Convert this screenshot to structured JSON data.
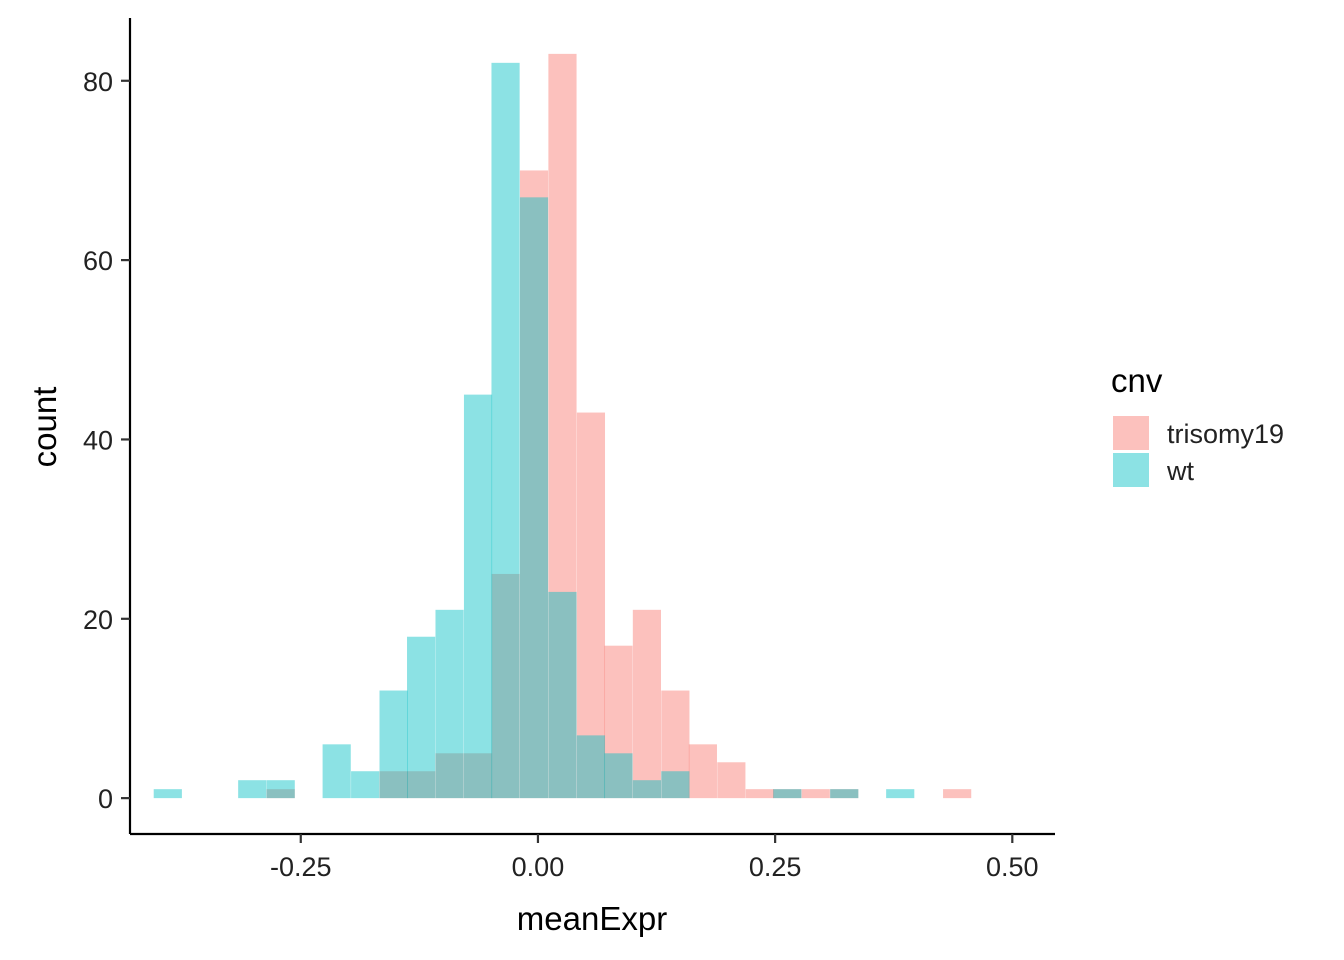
{
  "chart_data": {
    "type": "histogram",
    "xlabel": "meanExpr",
    "ylabel": "count",
    "xlim": [
      -0.43,
      0.545
    ],
    "ylim": [
      -4,
      87
    ],
    "x_ticks": [
      -0.25,
      0.0,
      0.25,
      0.5
    ],
    "x_tick_labels": [
      "-0.25",
      "0.00",
      "0.25",
      "0.50"
    ],
    "y_ticks": [
      0,
      20,
      40,
      60,
      80
    ],
    "y_tick_labels": [
      "0",
      "20",
      "40",
      "60",
      "80"
    ],
    "grid": false,
    "legend_position": "right",
    "bin_width": 0.0297,
    "bin_starts": [
      -0.405,
      -0.375,
      -0.346,
      -0.316,
      -0.286,
      -0.256,
      -0.227,
      -0.197,
      -0.167,
      -0.138,
      -0.108,
      -0.078,
      -0.049,
      -0.019,
      0.011,
      0.041,
      0.07,
      0.1,
      0.13,
      0.159,
      0.189,
      0.219,
      0.248,
      0.278,
      0.308,
      0.338,
      0.367,
      0.397,
      0.427,
      0.456
    ],
    "series": [
      {
        "name": "trisomy19",
        "color": "#F8766D",
        "values": [
          0,
          0,
          0,
          0,
          1,
          0,
          0,
          0,
          3,
          3,
          5,
          5,
          25,
          70,
          83,
          43,
          17,
          21,
          12,
          6,
          4,
          1,
          1,
          1,
          1,
          0,
          0,
          0,
          1,
          0
        ]
      },
      {
        "name": "wt",
        "color": "#00BFC4",
        "values": [
          1,
          0,
          0,
          2,
          2,
          0,
          6,
          3,
          12,
          18,
          21,
          45,
          82,
          67,
          23,
          7,
          5,
          2,
          3,
          0,
          0,
          0,
          1,
          0,
          1,
          0,
          1,
          0,
          0,
          0
        ]
      }
    ],
    "fill_alpha": 0.45
  },
  "legend": {
    "title": "cnv",
    "items": [
      "trisomy19",
      "wt"
    ]
  }
}
